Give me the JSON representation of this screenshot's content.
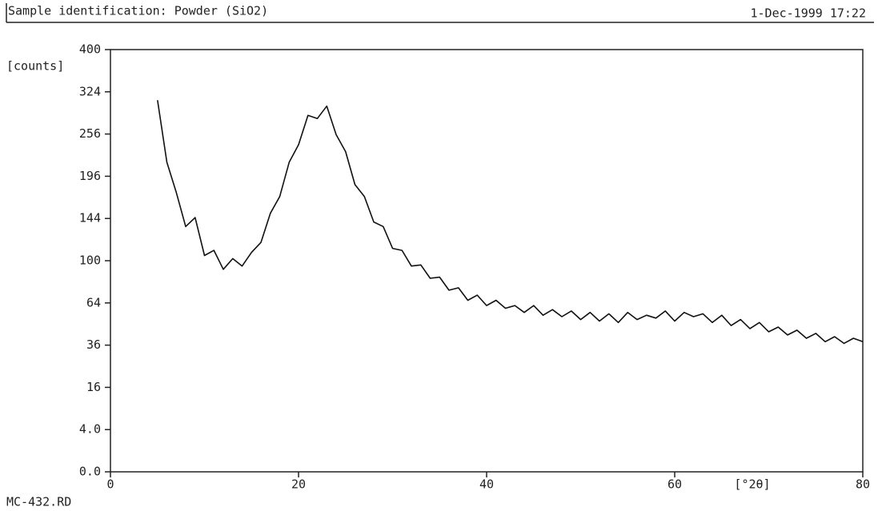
{
  "chart_data": {
    "type": "line",
    "title": "Sample identification: Powder (SiO2)",
    "date": "1-Dec-1999 17:22",
    "footer": "MC-432.RD",
    "ylabel": "[counts]",
    "xlabel": "[°2θ]",
    "yscale": "sqrt",
    "color": "#111111",
    "grid": false,
    "xlim": [
      0,
      80
    ],
    "xticks": [
      0,
      20,
      40,
      60,
      80
    ],
    "ylim": [
      0,
      400
    ],
    "yticks": [
      {
        "value": 0,
        "label": "0.0"
      },
      {
        "value": 4,
        "label": "4.0"
      },
      16,
      36,
      64,
      100,
      144,
      196,
      256,
      324,
      400
    ],
    "x": [
      5,
      6,
      7,
      8,
      9,
      10,
      11,
      12,
      13,
      14,
      15,
      16,
      17,
      18,
      19,
      20,
      21,
      22,
      23,
      24,
      25,
      26,
      27,
      28,
      29,
      30,
      31,
      32,
      33,
      34,
      35,
      36,
      37,
      38,
      39,
      40,
      41,
      42,
      43,
      44,
      45,
      46,
      47,
      48,
      49,
      50,
      51,
      52,
      53,
      54,
      55,
      56,
      57,
      58,
      59,
      60,
      61,
      62,
      63,
      64,
      65,
      66,
      67,
      68,
      69,
      70,
      71,
      72,
      73,
      74,
      75,
      76,
      77,
      78,
      79,
      80
    ],
    "values": [
      310,
      215,
      175,
      135,
      145,
      105,
      110,
      92,
      102,
      95,
      108,
      118,
      150,
      170,
      215,
      240,
      285,
      280,
      300,
      255,
      230,
      185,
      170,
      140,
      135,
      112,
      110,
      95,
      96,
      84,
      85,
      74,
      76,
      66,
      70,
      62,
      66,
      60,
      62,
      57,
      62,
      55,
      59,
      54,
      58,
      52,
      57,
      51,
      56,
      50,
      57,
      52,
      55,
      53,
      58,
      51,
      57,
      54,
      56,
      50,
      55,
      48,
      52,
      46,
      50,
      44,
      47,
      42,
      45,
      40,
      43,
      38,
      41,
      37,
      40,
      38
    ]
  }
}
